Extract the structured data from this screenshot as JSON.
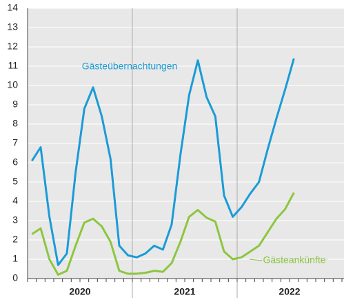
{
  "chart_data": {
    "type": "line",
    "categories": [
      null,
      null,
      null,
      null,
      null,
      null,
      null,
      null,
      null,
      null,
      null,
      null,
      null,
      null,
      null,
      null,
      null,
      null,
      null,
      null,
      null,
      null,
      null,
      null,
      null,
      null,
      null,
      null,
      null,
      null,
      null
    ],
    "year_groups": [
      "2020",
      "2021",
      "2022"
    ],
    "series": [
      {
        "name": "Gästeübernachtungen",
        "color": "#1a9bd7",
        "values": [
          6.1,
          6.8,
          3.2,
          0.7,
          1.3,
          5.5,
          8.8,
          9.9,
          8.4,
          6.2,
          1.7,
          1.2,
          1.1,
          1.3,
          1.7,
          1.5,
          2.8,
          6.4,
          9.5,
          11.3,
          9.4,
          8.4,
          4.3,
          3.2,
          3.7,
          4.4,
          5.0,
          6.7,
          8.3,
          9.8,
          11.4
        ]
      },
      {
        "name": "Gästeankünfte",
        "color": "#8cc63f",
        "values": [
          2.3,
          2.6,
          1.0,
          0.2,
          0.4,
          1.7,
          2.9,
          3.1,
          2.7,
          1.9,
          0.4,
          0.25,
          0.25,
          0.3,
          0.4,
          0.35,
          0.8,
          1.9,
          3.2,
          3.55,
          3.15,
          2.95,
          1.4,
          1.0,
          1.1,
          1.4,
          1.7,
          2.4,
          3.1,
          3.6,
          4.45
        ]
      }
    ],
    "ylim": [
      0,
      14
    ],
    "yticks": [
      0,
      1,
      2,
      3,
      4,
      5,
      6,
      7,
      8,
      9,
      10,
      11,
      12,
      13,
      14
    ],
    "grid": true
  }
}
